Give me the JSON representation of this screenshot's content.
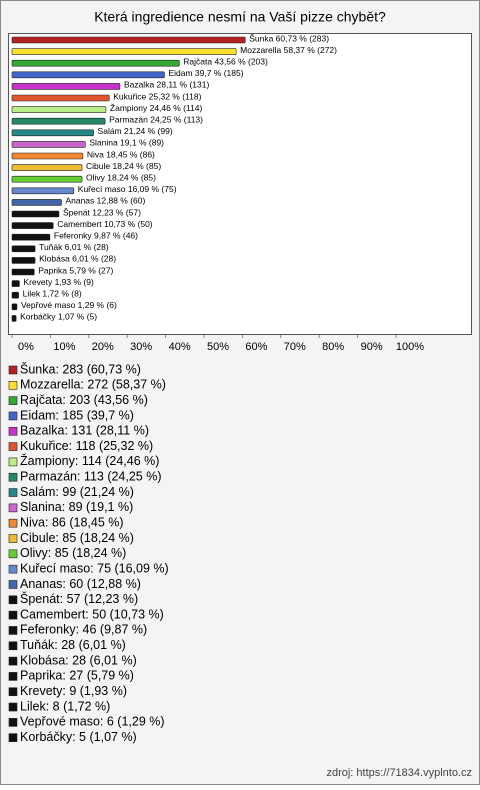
{
  "chart_data": {
    "type": "hbar",
    "title": "Která ingredience nesmí na Vaší pizze chybět?",
    "categories": [
      "Šunka",
      "Mozzarella",
      "Rajčata",
      "Eidam",
      "Bazalka",
      "Kukuřice",
      "Žampiony",
      "Parmazán",
      "Salám",
      "Slanina",
      "Niva",
      "Cibule",
      "Olivy",
      "Kuřecí maso",
      "Ananas",
      "Špenát",
      "Camembert",
      "Feferonky",
      "Tuňák",
      "Klobása",
      "Paprika",
      "Krevety",
      "Lilek",
      "Vepřové maso",
      "Korbáčky"
    ],
    "values": [
      60.73,
      58.37,
      43.56,
      39.7,
      28.11,
      25.32,
      24.46,
      24.25,
      21.24,
      19.1,
      18.45,
      18.24,
      18.24,
      16.09,
      12.88,
      12.23,
      10.73,
      9.87,
      6.01,
      6.01,
      5.79,
      1.93,
      1.72,
      1.29,
      1.07
    ],
    "value_labels": [
      "Šunka 60,73 % (283)",
      "Mozzarella 58,37 % (272)",
      "Rajčata 43,56 % (203)",
      "Eidam 39,7 % (185)",
      "Bazalka 28,11 % (131)",
      "Kukuřice 25,32 % (118)",
      "Žampiony 24,46 % (114)",
      "Parmazán 24,25 % (113)",
      "Salám 21,24 % (99)",
      "Slanina 19,1 % (89)",
      "Niva 18,45 % (86)",
      "Cibule 18,24 % (85)",
      "Olivy 18,24 % (85)",
      "Kuřecí maso 16,09 % (75)",
      "Ananas 12,88 % (60)",
      "Špenát 12,23 % (57)",
      "Camembert 10,73 % (50)",
      "Feferonky 9,87 % (46)",
      "Tuňák 6,01 % (28)",
      "Klobása 6,01 % (28)",
      "Paprika 5,79 % (27)",
      "Krevety 1,93 % (9)",
      "Lilek 1,72 % (8)",
      "Vepřové maso 1,29 % (6)",
      "Korbáčky 1,07 % (5)"
    ],
    "legend_labels": [
      "Šunka: 283 (60,73 %)",
      "Mozzarella: 272 (58,37 %)",
      "Rajčata: 203 (43,56 %)",
      "Eidam: 185 (39,7 %)",
      "Bazalka: 131 (28,11 %)",
      "Kukuřice: 118 (25,32 %)",
      "Žampiony: 114 (24,46 %)",
      "Parmazán: 113 (24,25 %)",
      "Salám: 99 (21,24 %)",
      "Slanina: 89 (19,1 %)",
      "Niva: 86 (18,45 %)",
      "Cibule: 85 (18,24 %)",
      "Olivy: 85 (18,24 %)",
      "Kuřecí maso: 75 (16,09 %)",
      "Ananas: 60 (12,88 %)",
      "Špenát: 57 (12,23 %)",
      "Camembert: 50 (10,73 %)",
      "Feferonky: 46 (9,87 %)",
      "Tuňák: 28 (6,01 %)",
      "Klobása: 28 (6,01 %)",
      "Paprika: 27 (5,79 %)",
      "Krevety: 9 (1,93 %)",
      "Lilek: 8 (1,72 %)",
      "Vepřové maso: 6 (1,29 %)",
      "Korbáčky: 5 (1,07 %)"
    ],
    "colors": [
      "#b22222",
      "#ffe030",
      "#33aa33",
      "#4466cc",
      "#cc33cc",
      "#e05530",
      "#bbee88",
      "#228866",
      "#228888",
      "#cc66cc",
      "#ee8833",
      "#eebb33",
      "#66cc33",
      "#6688cc",
      "#4466aa",
      "#111111",
      "#111111",
      "#111111",
      "#111111",
      "#111111",
      "#111111",
      "#111111",
      "#111111",
      "#111111",
      "#111111"
    ],
    "xlim": [
      0,
      100
    ],
    "xticks": [
      {
        "value": 0,
        "label": "0%"
      },
      {
        "value": 10,
        "label": "10%"
      },
      {
        "value": 20,
        "label": "20%"
      },
      {
        "value": 30,
        "label": "30%"
      },
      {
        "value": 40,
        "label": "40%"
      },
      {
        "value": 50,
        "label": "50%"
      },
      {
        "value": 60,
        "label": "60%"
      },
      {
        "value": 70,
        "label": "70%"
      },
      {
        "value": 80,
        "label": "80%"
      },
      {
        "value": 90,
        "label": "90%"
      },
      {
        "value": 100,
        "label": "100%"
      }
    ],
    "source": "zdroj: https://71834.vyplnto.cz"
  }
}
